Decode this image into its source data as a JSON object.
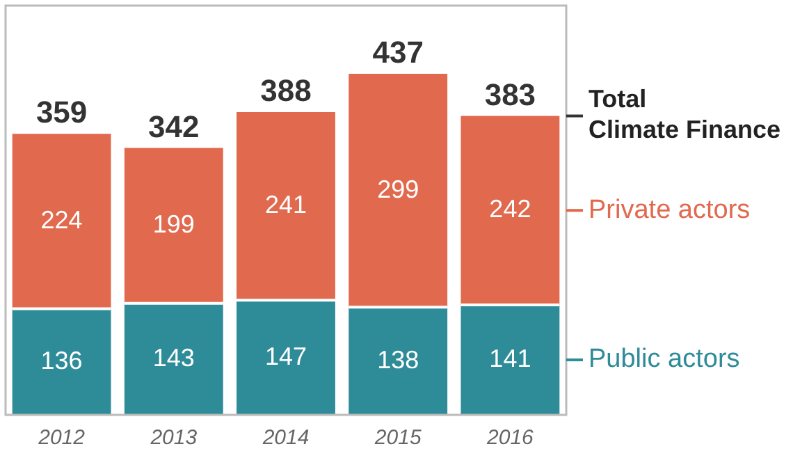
{
  "chart_data": {
    "type": "bar",
    "stacked": true,
    "data_labels": true,
    "categories": [
      "2012",
      "2013",
      "2014",
      "2015",
      "2016"
    ],
    "series": [
      {
        "name": "Public actors",
        "color": "#2e8b98",
        "values": [
          136,
          143,
          147,
          138,
          141
        ]
      },
      {
        "name": "Private actors",
        "color": "#e0694e",
        "values": [
          224,
          199,
          241,
          299,
          242
        ]
      }
    ],
    "totals": [
      "359",
      "342",
      "388",
      "437",
      "383"
    ],
    "annotations": [
      "Total Climate Finance"
    ],
    "grid": false,
    "legend": "right"
  }
}
